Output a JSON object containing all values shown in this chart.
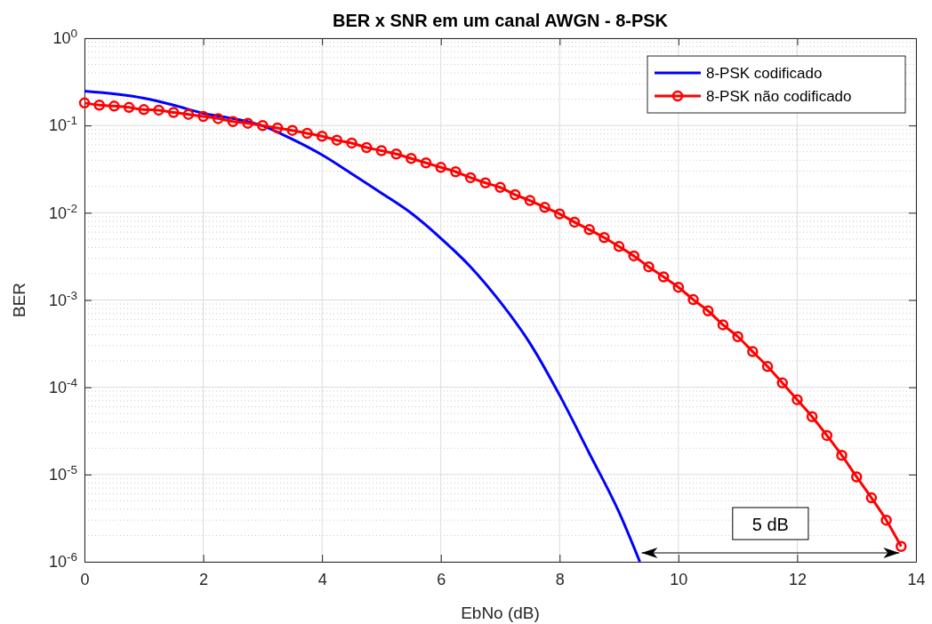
{
  "chart_data": {
    "type": "line",
    "title": "BER x SNR em um canal AWGN - 8-PSK",
    "xlabel": "EbNo (dB)",
    "ylabel": "BER",
    "log": "y",
    "grid": true,
    "legend": "top right",
    "xlim": [
      0,
      14
    ],
    "xticks": [
      0,
      2,
      4,
      6,
      8,
      10,
      12,
      14
    ],
    "ylim": [
      1e-06,
      1
    ],
    "yticks": [
      {
        "value": 1e-06,
        "label": "10$^{-6}$"
      },
      {
        "value": 1e-05,
        "label": "10$^{-5}$"
      },
      {
        "value": 0.0001,
        "label": "10$^{-4}$"
      },
      {
        "value": 0.001,
        "label": "10$^{-3}$"
      },
      {
        "value": 0.01,
        "label": "10$^{-2}$"
      },
      {
        "value": 0.1,
        "label": "10$^{-1}$"
      },
      {
        "value": 1,
        "label": "10$^{0}$"
      }
    ],
    "series": [
      {
        "name": "8-PSK codificado",
        "color": "#0000ff",
        "marker": "none",
        "x": [
          0,
          1,
          1.5,
          2,
          2.5,
          3,
          3.5,
          4,
          4.5,
          5,
          5.5,
          6,
          6.5,
          7,
          7.5,
          8,
          8.5,
          9,
          9.35
        ],
        "values": [
          0.247,
          0.205,
          0.171,
          0.138,
          0.12,
          0.099,
          0.0695,
          0.046,
          0.028,
          0.0168,
          0.0099,
          0.0051,
          0.0024,
          0.00095,
          0.00032,
          8.1e-05,
          1.75e-05,
          3.7e-06,
          1e-06
        ]
      },
      {
        "name": "8-PSK não codificado",
        "color": "#ff0000",
        "marker": "circle",
        "x": [
          0,
          0.25,
          0.5,
          0.75,
          1,
          1.25,
          1.5,
          1.75,
          2,
          2.25,
          2.5,
          2.75,
          3,
          3.25,
          3.5,
          3.75,
          4,
          4.25,
          4.5,
          4.75,
          5,
          5.25,
          5.5,
          5.75,
          6,
          6.25,
          6.5,
          6.75,
          7,
          7.25,
          7.5,
          7.75,
          8,
          8.25,
          8.5,
          8.75,
          9,
          9.25,
          9.5,
          9.75,
          10,
          10.25,
          10.5,
          10.75,
          11,
          11.25,
          11.5,
          11.75,
          12,
          12.25,
          12.5,
          12.75,
          13,
          13.25,
          13.5,
          13.75
        ],
        "values": [
          0.181,
          0.171,
          0.167,
          0.161,
          0.152,
          0.15,
          0.141,
          0.134,
          0.127,
          0.12,
          0.111,
          0.106,
          0.0998,
          0.0936,
          0.0879,
          0.0813,
          0.0753,
          0.0679,
          0.0629,
          0.0559,
          0.0515,
          0.0471,
          0.0419,
          0.0373,
          0.0331,
          0.0295,
          0.0252,
          0.022,
          0.0195,
          0.0161,
          0.0138,
          0.0115,
          0.0097,
          0.0078,
          0.0064,
          0.0052,
          0.0041,
          0.0032,
          0.0024,
          0.00184,
          0.0014,
          0.00101,
          0.00075,
          0.00052,
          0.00038,
          0.000256,
          0.000173,
          0.000112,
          7.2e-05,
          4.6e-05,
          2.8e-05,
          1.66e-05,
          9.4e-06,
          5.4e-06,
          3e-06,
          1.5e-06
        ]
      }
    ],
    "annotations": [
      "5 dB"
    ]
  }
}
